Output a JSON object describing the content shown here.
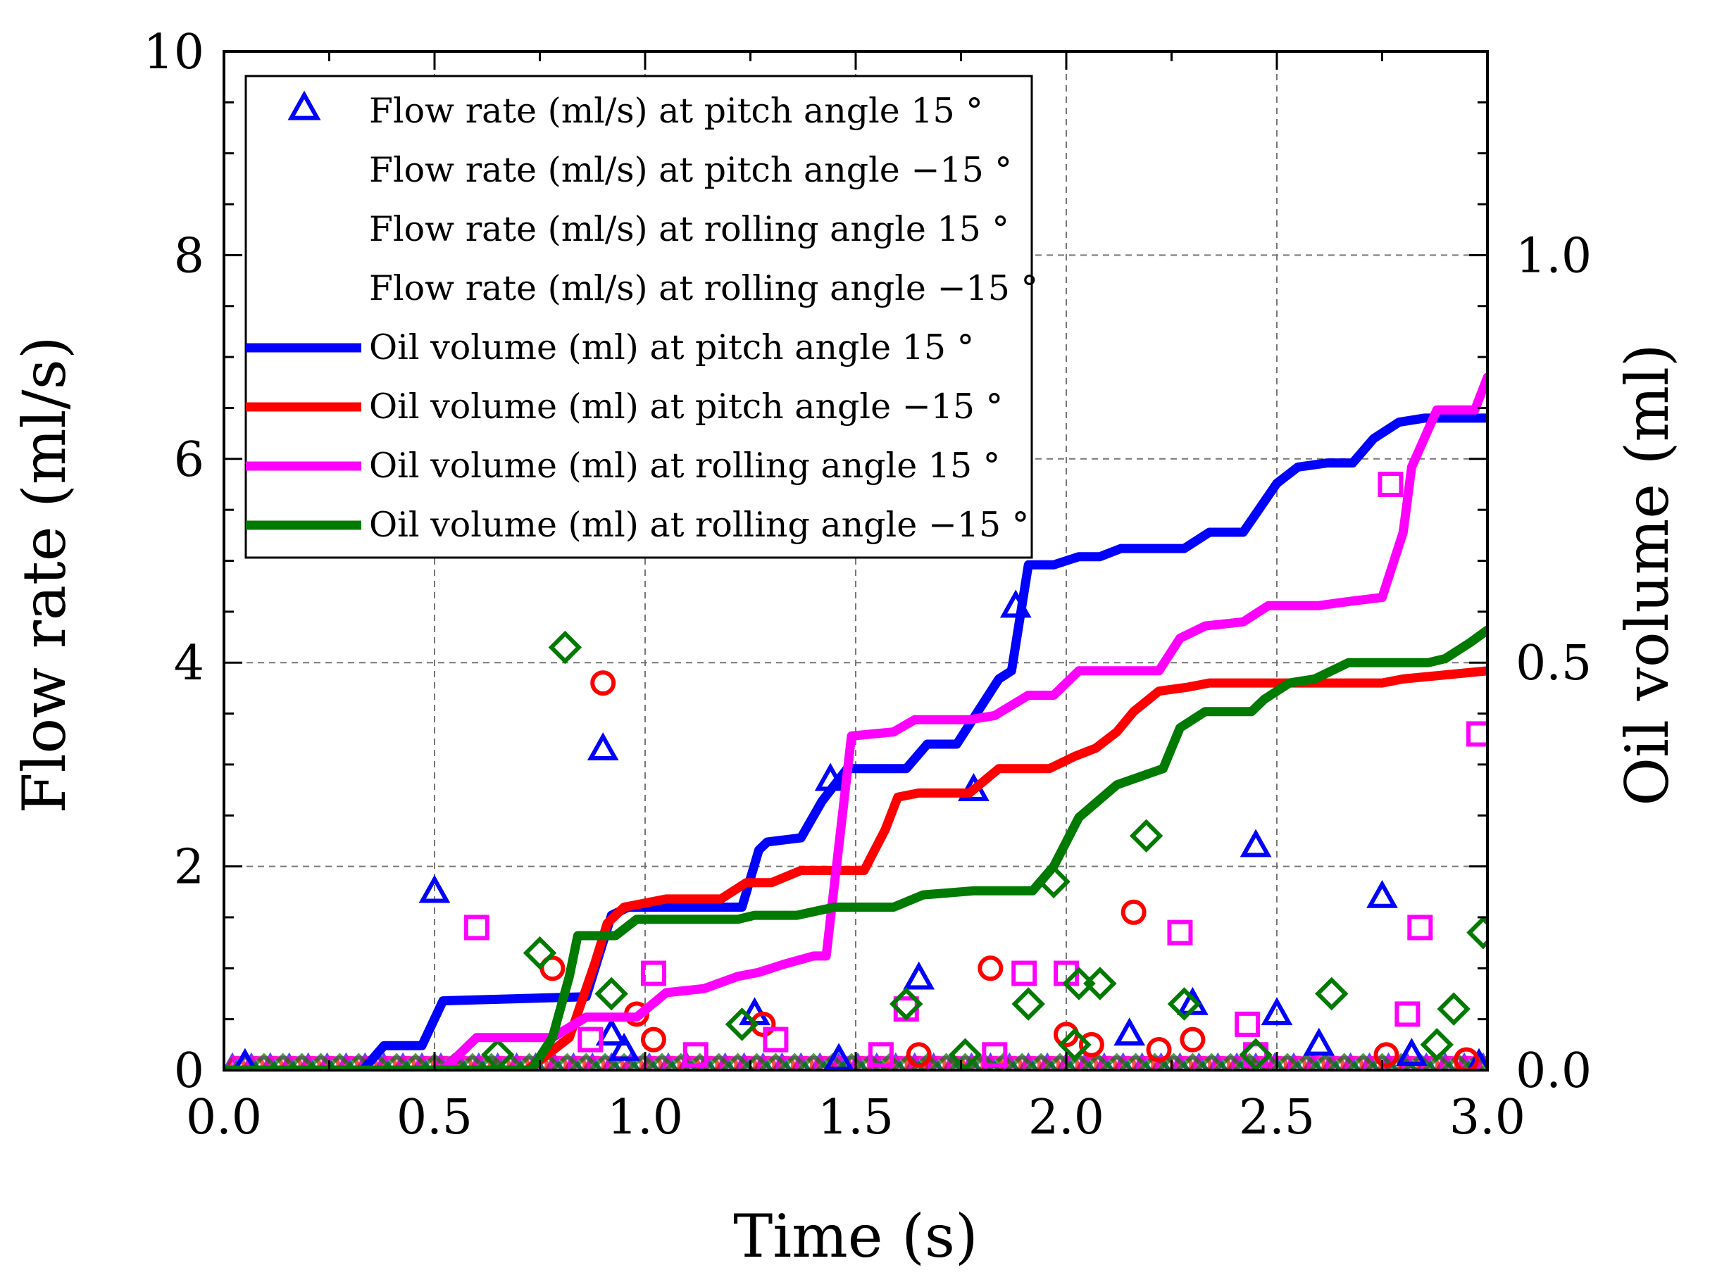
{
  "chart_data": {
    "type": "line+scatter",
    "xlabel": "Time (s)",
    "ylabel_left": "Flow rate (ml/s)",
    "ylabel_right": "Oil volume (ml)",
    "xlim": [
      0.0,
      3.0
    ],
    "ylim_left": [
      0,
      10
    ],
    "ylim_right": [
      0.0,
      1.25
    ],
    "x_ticks": [
      "0.0",
      "0.5",
      "1.0",
      "1.5",
      "2.0",
      "2.5",
      "3.0"
    ],
    "y_left_ticks": [
      "0",
      "2",
      "4",
      "6",
      "8",
      "10"
    ],
    "y_right_ticks": [
      "0.0",
      "0.5",
      "1.0"
    ],
    "grid": true,
    "legend_position": "top-left",
    "legend": [
      "Flow rate (ml/s) at pitch angle 15 °",
      "Flow rate (ml/s) at pitch angle −15 °",
      "Flow rate (ml/s) at rolling angle 15 °",
      "Flow rate (ml/s) at rolling angle −15 °",
      "Oil volume (ml) at pitch angle 15 °",
      "Oil volume (ml) at pitch angle −15 °",
      "Oil volume (ml) at rolling angle 15 °",
      "Oil volume (ml) at rolling angle −15 °"
    ],
    "colors": {
      "pitch_pos": "#0000ff",
      "pitch_neg": "#ff0000",
      "roll_pos": "#ff00ff",
      "roll_neg": "#007a00"
    },
    "scatter_series": [
      {
        "name": "Flow rate (ml/s) at pitch angle 15 °",
        "marker": "triangle",
        "color": "#0000ff",
        "points": [
          [
            0.05,
            0.05
          ],
          [
            0.5,
            1.75
          ],
          [
            0.9,
            3.15
          ],
          [
            0.92,
            0.35
          ],
          [
            0.95,
            0.2
          ],
          [
            1.26,
            0.55
          ],
          [
            1.44,
            2.85
          ],
          [
            1.46,
            0.1
          ],
          [
            1.65,
            0.9
          ],
          [
            1.78,
            2.75
          ],
          [
            1.88,
            4.55
          ],
          [
            2.15,
            0.35
          ],
          [
            2.3,
            0.65
          ],
          [
            2.45,
            2.2
          ],
          [
            2.5,
            0.55
          ],
          [
            2.6,
            0.25
          ],
          [
            2.75,
            1.7
          ],
          [
            2.82,
            0.15
          ],
          [
            2.98,
            0.05
          ]
        ]
      },
      {
        "name": "Flow rate (ml/s) at pitch angle −15 °",
        "marker": "circle",
        "color": "#ff0000",
        "points": [
          [
            0.78,
            1.0
          ],
          [
            0.9,
            3.8
          ],
          [
            0.98,
            0.55
          ],
          [
            1.02,
            0.3
          ],
          [
            1.28,
            0.45
          ],
          [
            1.65,
            0.15
          ],
          [
            1.82,
            1.0
          ],
          [
            2.0,
            0.35
          ],
          [
            2.06,
            0.25
          ],
          [
            2.16,
            1.55
          ],
          [
            2.22,
            0.2
          ],
          [
            2.3,
            0.3
          ],
          [
            2.76,
            0.15
          ],
          [
            2.95,
            0.1
          ]
        ]
      },
      {
        "name": "Flow rate (ml/s) at rolling angle 15 °",
        "marker": "square",
        "color": "#ff00ff",
        "points": [
          [
            0.6,
            1.4
          ],
          [
            0.87,
            0.3
          ],
          [
            1.02,
            0.95
          ],
          [
            1.12,
            0.15
          ],
          [
            1.31,
            0.3
          ],
          [
            1.56,
            0.15
          ],
          [
            1.62,
            0.6
          ],
          [
            1.83,
            0.15
          ],
          [
            1.9,
            0.95
          ],
          [
            2.0,
            0.95
          ],
          [
            2.27,
            1.35
          ],
          [
            2.43,
            0.45
          ],
          [
            2.45,
            0.15
          ],
          [
            2.77,
            5.75
          ],
          [
            2.81,
            0.55
          ],
          [
            2.84,
            1.4
          ],
          [
            2.98,
            3.3
          ]
        ]
      },
      {
        "name": "Flow rate (ml/s) at rolling angle −15 °",
        "marker": "diamond",
        "color": "#007a00",
        "points": [
          [
            0.65,
            0.15
          ],
          [
            0.75,
            1.15
          ],
          [
            0.81,
            4.15
          ],
          [
            0.92,
            0.75
          ],
          [
            1.23,
            0.45
          ],
          [
            1.62,
            0.65
          ],
          [
            1.76,
            0.15
          ],
          [
            1.91,
            0.65
          ],
          [
            1.97,
            1.85
          ],
          [
            2.02,
            0.25
          ],
          [
            2.03,
            0.85
          ],
          [
            2.08,
            0.85
          ],
          [
            2.19,
            2.3
          ],
          [
            2.28,
            0.65
          ],
          [
            2.45,
            0.15
          ],
          [
            2.63,
            0.75
          ],
          [
            2.88,
            0.25
          ],
          [
            2.92,
            0.6
          ],
          [
            2.99,
            1.35
          ]
        ]
      }
    ],
    "line_series": [
      {
        "name": "Oil volume (ml) at pitch angle 15 °",
        "color": "#0000ff",
        "points": [
          [
            0.0,
            0.0
          ],
          [
            0.33,
            0.0
          ],
          [
            0.38,
            0.03
          ],
          [
            0.47,
            0.03
          ],
          [
            0.52,
            0.085
          ],
          [
            0.86,
            0.09
          ],
          [
            0.92,
            0.19
          ],
          [
            0.96,
            0.2
          ],
          [
            1.23,
            0.2
          ],
          [
            1.27,
            0.27
          ],
          [
            1.29,
            0.28
          ],
          [
            1.37,
            0.285
          ],
          [
            1.42,
            0.33
          ],
          [
            1.48,
            0.37
          ],
          [
            1.62,
            0.37
          ],
          [
            1.67,
            0.4
          ],
          [
            1.74,
            0.4
          ],
          [
            1.79,
            0.44
          ],
          [
            1.84,
            0.48
          ],
          [
            1.87,
            0.49
          ],
          [
            1.91,
            0.62
          ],
          [
            1.97,
            0.62
          ],
          [
            2.03,
            0.63
          ],
          [
            2.08,
            0.63
          ],
          [
            2.13,
            0.64
          ],
          [
            2.28,
            0.64
          ],
          [
            2.34,
            0.66
          ],
          [
            2.42,
            0.66
          ],
          [
            2.46,
            0.69
          ],
          [
            2.5,
            0.72
          ],
          [
            2.55,
            0.74
          ],
          [
            2.62,
            0.745
          ],
          [
            2.68,
            0.745
          ],
          [
            2.73,
            0.775
          ],
          [
            2.79,
            0.795
          ],
          [
            2.85,
            0.8
          ],
          [
            3.0,
            0.8
          ]
        ]
      },
      {
        "name": "Oil volume (ml) at pitch angle −15 °",
        "color": "#ff0000",
        "points": [
          [
            0.0,
            0.0
          ],
          [
            0.72,
            0.0
          ],
          [
            0.82,
            0.04
          ],
          [
            0.88,
            0.13
          ],
          [
            0.91,
            0.18
          ],
          [
            0.95,
            0.2
          ],
          [
            1.05,
            0.21
          ],
          [
            1.18,
            0.21
          ],
          [
            1.24,
            0.23
          ],
          [
            1.3,
            0.23
          ],
          [
            1.37,
            0.245
          ],
          [
            1.46,
            0.245
          ],
          [
            1.52,
            0.245
          ],
          [
            1.57,
            0.295
          ],
          [
            1.6,
            0.335
          ],
          [
            1.65,
            0.34
          ],
          [
            1.77,
            0.34
          ],
          [
            1.84,
            0.37
          ],
          [
            1.96,
            0.37
          ],
          [
            2.02,
            0.385
          ],
          [
            2.07,
            0.395
          ],
          [
            2.12,
            0.415
          ],
          [
            2.16,
            0.44
          ],
          [
            2.22,
            0.465
          ],
          [
            2.29,
            0.47
          ],
          [
            2.34,
            0.475
          ],
          [
            2.75,
            0.475
          ],
          [
            2.8,
            0.48
          ],
          [
            3.0,
            0.49
          ]
        ]
      },
      {
        "name": "Oil volume (ml) at rolling angle 15 °",
        "color": "#ff00ff",
        "points": [
          [
            0.0,
            0.0
          ],
          [
            0.52,
            0.0
          ],
          [
            0.6,
            0.04
          ],
          [
            0.78,
            0.04
          ],
          [
            0.86,
            0.065
          ],
          [
            0.93,
            0.065
          ],
          [
            0.98,
            0.065
          ],
          [
            1.05,
            0.095
          ],
          [
            1.14,
            0.1
          ],
          [
            1.22,
            0.115
          ],
          [
            1.27,
            0.12
          ],
          [
            1.33,
            0.13
          ],
          [
            1.4,
            0.14
          ],
          [
            1.43,
            0.14
          ],
          [
            1.49,
            0.41
          ],
          [
            1.59,
            0.415
          ],
          [
            1.64,
            0.43
          ],
          [
            1.77,
            0.43
          ],
          [
            1.83,
            0.435
          ],
          [
            1.91,
            0.46
          ],
          [
            1.97,
            0.46
          ],
          [
            2.03,
            0.49
          ],
          [
            2.22,
            0.49
          ],
          [
            2.27,
            0.53
          ],
          [
            2.33,
            0.545
          ],
          [
            2.42,
            0.55
          ],
          [
            2.48,
            0.57
          ],
          [
            2.6,
            0.57
          ],
          [
            2.67,
            0.575
          ],
          [
            2.75,
            0.58
          ],
          [
            2.8,
            0.66
          ],
          [
            2.82,
            0.74
          ],
          [
            2.88,
            0.81
          ],
          [
            2.97,
            0.81
          ],
          [
            3.0,
            0.85
          ]
        ]
      },
      {
        "name": "Oil volume (ml) at rolling angle −15 °",
        "color": "#007a00",
        "points": [
          [
            0.0,
            0.0
          ],
          [
            0.73,
            0.0
          ],
          [
            0.78,
            0.04
          ],
          [
            0.82,
            0.115
          ],
          [
            0.84,
            0.165
          ],
          [
            0.93,
            0.165
          ],
          [
            0.98,
            0.185
          ],
          [
            1.08,
            0.185
          ],
          [
            1.14,
            0.185
          ],
          [
            1.22,
            0.185
          ],
          [
            1.26,
            0.19
          ],
          [
            1.36,
            0.19
          ],
          [
            1.45,
            0.2
          ],
          [
            1.59,
            0.2
          ],
          [
            1.66,
            0.215
          ],
          [
            1.78,
            0.22
          ],
          [
            1.92,
            0.22
          ],
          [
            1.97,
            0.25
          ],
          [
            2.03,
            0.31
          ],
          [
            2.12,
            0.35
          ],
          [
            2.23,
            0.37
          ],
          [
            2.27,
            0.42
          ],
          [
            2.33,
            0.44
          ],
          [
            2.44,
            0.44
          ],
          [
            2.47,
            0.455
          ],
          [
            2.53,
            0.475
          ],
          [
            2.59,
            0.48
          ],
          [
            2.67,
            0.5
          ],
          [
            2.86,
            0.5
          ],
          [
            2.9,
            0.505
          ],
          [
            2.96,
            0.525
          ],
          [
            3.0,
            0.54
          ]
        ]
      }
    ]
  }
}
